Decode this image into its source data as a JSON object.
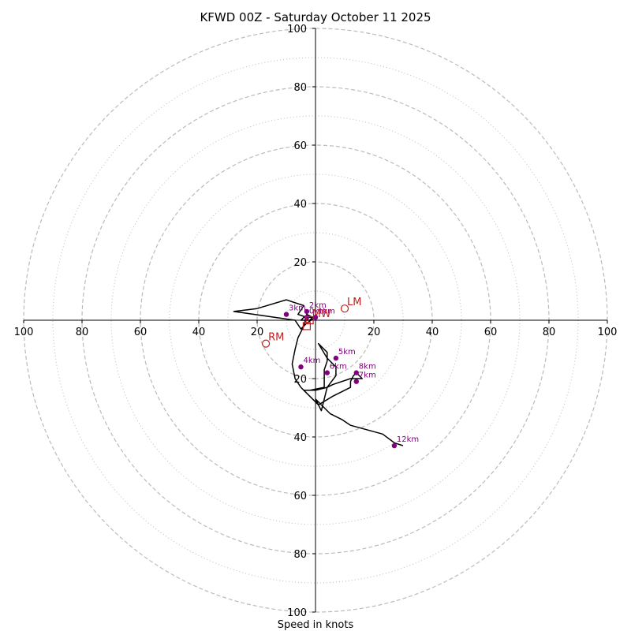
{
  "chart_data": {
    "type": "hodograph",
    "title": "KFWD 00Z - Saturday October 11 2025",
    "xlabel": "Speed in knots",
    "xlim": [
      -100,
      100
    ],
    "ylim": [
      -100,
      100
    ],
    "x_ticks": [
      -100,
      -80,
      -60,
      -40,
      -20,
      20,
      40,
      60,
      80,
      100
    ],
    "x_tick_labels": [
      "100",
      "80",
      "60",
      "40",
      "20",
      "20",
      "40",
      "60",
      "80",
      "100"
    ],
    "y_ticks": [
      100,
      80,
      60,
      40,
      20,
      -20,
      -40,
      -60,
      -80,
      -100
    ],
    "y_tick_labels": [
      "100",
      "80",
      "60",
      "40",
      "20",
      "20",
      "40",
      "60",
      "80",
      "100"
    ],
    "rings_major": [
      20,
      40,
      60,
      80,
      100
    ],
    "rings_minor": [
      10,
      30,
      50,
      70,
      90
    ],
    "colors": {
      "trace": "#000000",
      "height_marker": "#800080",
      "motion_marker": "#c02020",
      "ring": "#bbbbbb",
      "axis": "#000000"
    },
    "trace": [
      [
        -3,
        1
      ],
      [
        -6,
        2
      ],
      [
        -4,
        5
      ],
      [
        -10,
        7
      ],
      [
        -20,
        4
      ],
      [
        -28,
        3
      ],
      [
        -7,
        0
      ],
      [
        -5,
        -3
      ],
      [
        -3,
        -1
      ],
      [
        0,
        1
      ],
      [
        -4,
        1
      ],
      [
        -5,
        0
      ],
      [
        -2,
        0
      ],
      [
        -1,
        1
      ],
      [
        -3,
        2
      ],
      [
        -4,
        -2
      ],
      [
        -6,
        -6
      ],
      [
        -7,
        -10
      ],
      [
        -8,
        -15
      ],
      [
        -7,
        -20
      ],
      [
        -5,
        -23
      ],
      [
        -4,
        -24
      ],
      [
        0,
        -24
      ],
      [
        4,
        -23
      ],
      [
        7,
        -19
      ],
      [
        7,
        -16
      ],
      [
        4,
        -13
      ],
      [
        1,
        -8
      ],
      [
        4,
        -11
      ],
      [
        4,
        -14
      ],
      [
        3,
        -17
      ],
      [
        3,
        -23
      ],
      [
        -2,
        -24
      ],
      [
        -4,
        -24
      ],
      [
        -2,
        -26
      ],
      [
        1,
        -29
      ],
      [
        6,
        -26
      ],
      [
        10,
        -24
      ],
      [
        12,
        -23
      ],
      [
        12,
        -21
      ],
      [
        13,
        -19
      ],
      [
        14,
        -18
      ],
      [
        16,
        -20
      ],
      [
        12,
        -20
      ],
      [
        6,
        -22
      ],
      [
        4,
        -23
      ],
      [
        3,
        -27
      ],
      [
        2,
        -31
      ],
      [
        0,
        -27
      ],
      [
        3,
        -30
      ],
      [
        5,
        -32
      ],
      [
        9,
        -34
      ],
      [
        12,
        -36
      ],
      [
        23,
        -39
      ],
      [
        27,
        -42
      ],
      [
        30,
        -43
      ]
    ],
    "height_markers": [
      {
        "label": "0km",
        "x": -3,
        "y": 1
      },
      {
        "label": "1km",
        "x": 0,
        "y": 1
      },
      {
        "label": "2km",
        "x": -3,
        "y": 3
      },
      {
        "label": "3km",
        "x": -10,
        "y": 2
      },
      {
        "label": "4km",
        "x": -5,
        "y": -16
      },
      {
        "label": "5km",
        "x": 7,
        "y": -13
      },
      {
        "label": "6km",
        "x": 4,
        "y": -18
      },
      {
        "label": "7km",
        "x": 14,
        "y": -21
      },
      {
        "label": "8km",
        "x": 14,
        "y": -18
      },
      {
        "label": "12km",
        "x": 27,
        "y": -43
      }
    ],
    "motion_markers": [
      {
        "label": "LM",
        "x": 10,
        "y": 4,
        "shape": "circle"
      },
      {
        "label": "RM",
        "x": -17,
        "y": -8,
        "shape": "circle"
      },
      {
        "label": "MW",
        "x": -2,
        "y": 0,
        "shape": "square"
      },
      {
        "label": "",
        "x": -3,
        "y": -2,
        "shape": "square"
      }
    ]
  }
}
